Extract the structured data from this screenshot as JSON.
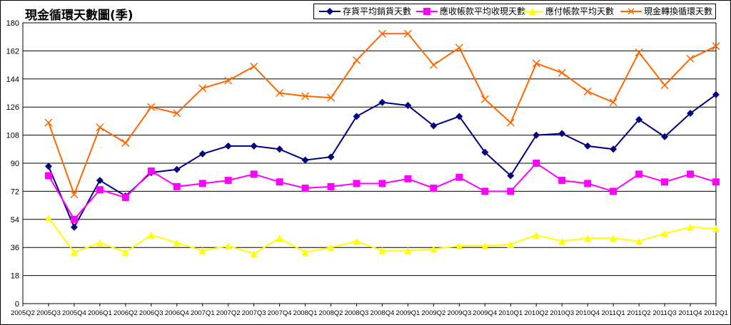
{
  "chart_data": {
    "type": "line",
    "title": "現金循環天數圖(季)",
    "xlabel": "",
    "ylabel": "",
    "ylim": [
      0,
      180
    ],
    "yticks": [
      0,
      18,
      36,
      54,
      72,
      90,
      108,
      126,
      144,
      162,
      180
    ],
    "grid": true,
    "legend_position": "top-right",
    "x": [
      "2005Q2",
      "2005Q3",
      "2005Q4",
      "2006Q1",
      "2006Q2",
      "2006Q3",
      "2006Q4",
      "2007Q1",
      "2007Q2",
      "2007Q3",
      "2007Q4",
      "2008Q1",
      "2008Q2",
      "2008Q3",
      "2008Q4",
      "2009Q1",
      "2009Q2",
      "2009Q3",
      "2009Q4",
      "2010Q1",
      "2010Q2",
      "2010Q3",
      "2010Q4",
      "2011Q1",
      "2011Q2",
      "2011Q3",
      "2011Q4",
      "2012Q1"
    ],
    "series": [
      {
        "name": "存貨平均銷貨天數",
        "color": "#000080",
        "marker": "diamond",
        "values": [
          null,
          88,
          49,
          79,
          69,
          84,
          86,
          96,
          101,
          101,
          99,
          92,
          94,
          120,
          129,
          127,
          114,
          120,
          97,
          82,
          108,
          109,
          101,
          99,
          118,
          107,
          122,
          134
        ]
      },
      {
        "name": "應收帳款平均收現天數",
        "color": "#ff00ff",
        "marker": "square",
        "values": [
          null,
          82,
          54,
          73,
          68,
          85,
          75,
          77,
          79,
          83,
          78,
          74,
          75,
          77,
          77,
          80,
          74,
          81,
          72,
          72,
          90,
          79,
          77,
          72,
          83,
          78,
          83,
          78
        ]
      },
      {
        "name": "應付帳款平均天數",
        "color": "#ffff00",
        "marker": "triangle",
        "values": [
          null,
          55,
          33,
          39,
          33,
          44,
          39,
          34,
          37,
          32,
          42,
          33,
          36,
          40,
          34,
          34,
          35,
          37,
          37,
          38,
          44,
          40,
          42,
          42,
          40,
          45,
          49,
          48
        ]
      },
      {
        "name": "現金轉換循環天數",
        "color": "#ff6600",
        "marker": "x",
        "values": [
          null,
          116,
          70,
          113,
          103,
          126,
          122,
          138,
          143,
          152,
          135,
          133,
          132,
          156,
          173,
          173,
          153,
          164,
          131,
          116,
          154,
          148,
          136,
          129,
          161,
          140,
          157,
          165
        ]
      }
    ]
  }
}
